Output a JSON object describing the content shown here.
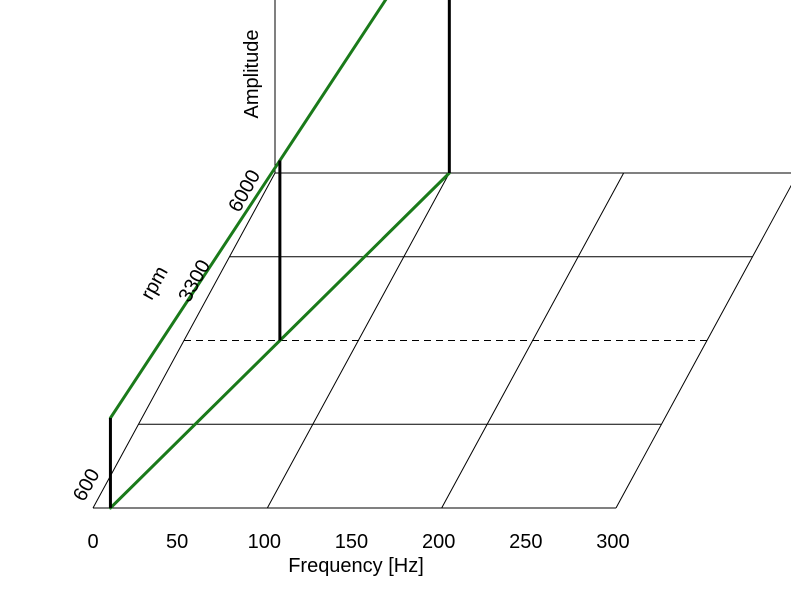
{
  "chart_data": {
    "type": "waterfall-3d",
    "xlabel": "Frequency [Hz]",
    "ylabel": "rpm",
    "zlabel": "Amplitude",
    "x_ticks": [
      "0",
      "50",
      "100",
      "150",
      "200",
      "250",
      "300"
    ],
    "y_ticks": [
      "600",
      "3300",
      "6000"
    ],
    "xlim": [
      0,
      300
    ],
    "ylim": [
      600,
      6000
    ],
    "grid": true,
    "spectra": [
      {
        "rpm": 600,
        "frequency": 10,
        "amplitude": 0.5
      },
      {
        "rpm": 3300,
        "frequency": 55,
        "amplitude": 1.0
      },
      {
        "rpm": 6000,
        "frequency": 100,
        "amplitude": 1.5
      }
    ],
    "colors": {
      "order_line": "#1a7a1a",
      "spectrum_line": "#000000",
      "grid": "#000000"
    }
  }
}
